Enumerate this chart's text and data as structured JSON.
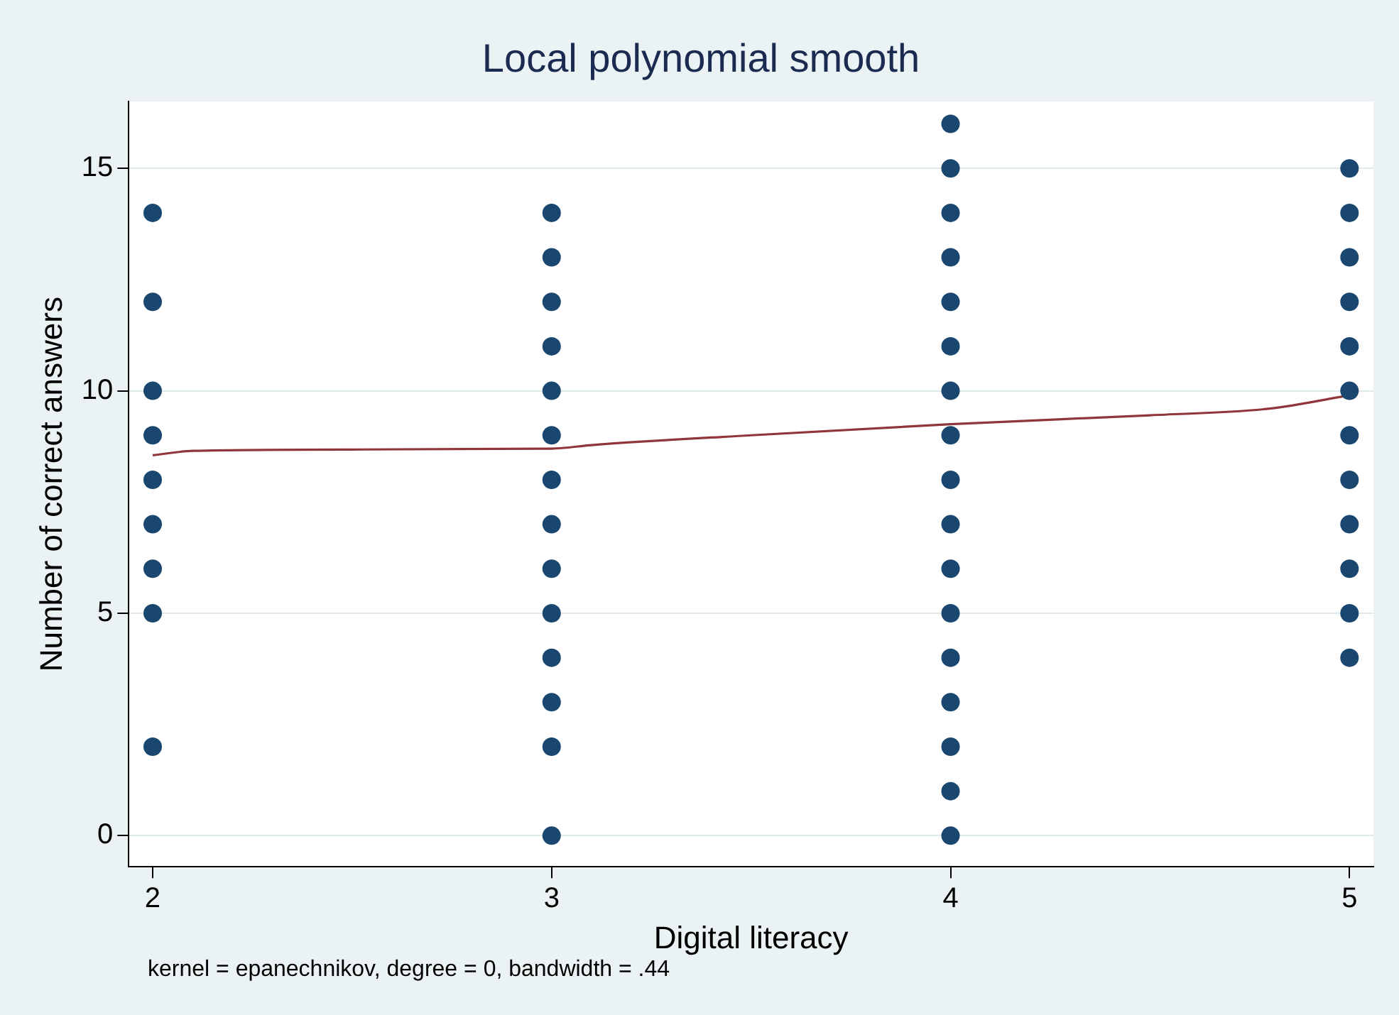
{
  "chart_data": {
    "type": "scatter",
    "title": "Local polynomial smooth",
    "xlabel": "Digital literacy",
    "ylabel": "Number of correct answers",
    "annotations": [
      "kernel = epanechnikov, degree = 0, bandwidth = .44"
    ],
    "xlim": [
      1.94,
      5.06
    ],
    "xticks": [
      2,
      3,
      4,
      5
    ],
    "ylim": [
      -0.7,
      16.5
    ],
    "yticks": [
      0,
      5,
      10,
      15
    ],
    "grid": "y",
    "legend": false,
    "series": [
      {
        "type": "scatter",
        "marker": "circle",
        "color": "#1a476f",
        "x": [
          2,
          2,
          2,
          2,
          2,
          2,
          2,
          2,
          2,
          3,
          3,
          3,
          3,
          3,
          3,
          3,
          3,
          3,
          3,
          3,
          3,
          3,
          3,
          4,
          4,
          4,
          4,
          4,
          4,
          4,
          4,
          4,
          4,
          4,
          4,
          4,
          4,
          4,
          4,
          4,
          5,
          5,
          5,
          5,
          5,
          5,
          5,
          5,
          5,
          5,
          5,
          5
        ],
        "values": [
          14,
          12,
          10,
          9,
          8,
          7,
          6,
          5,
          2,
          14,
          13,
          12,
          11,
          10,
          9,
          8,
          7,
          6,
          5,
          4,
          3,
          2,
          0,
          16,
          15,
          14,
          13,
          12,
          11,
          10,
          9,
          8,
          7,
          6,
          5,
          4,
          3,
          2,
          1,
          0,
          15,
          14,
          13,
          12,
          11,
          10,
          9,
          8,
          7,
          6,
          5,
          4
        ]
      },
      {
        "type": "line",
        "marker": "none",
        "line_style": "solid",
        "color": "#90353b",
        "x": [
          2,
          2.1,
          2.5,
          3,
          3.1,
          3.5,
          4,
          4.5,
          4.8,
          5
        ],
        "values": [
          8.55,
          8.65,
          8.68,
          8.7,
          8.78,
          9.0,
          9.25,
          9.45,
          9.6,
          9.9
        ]
      }
    ]
  }
}
